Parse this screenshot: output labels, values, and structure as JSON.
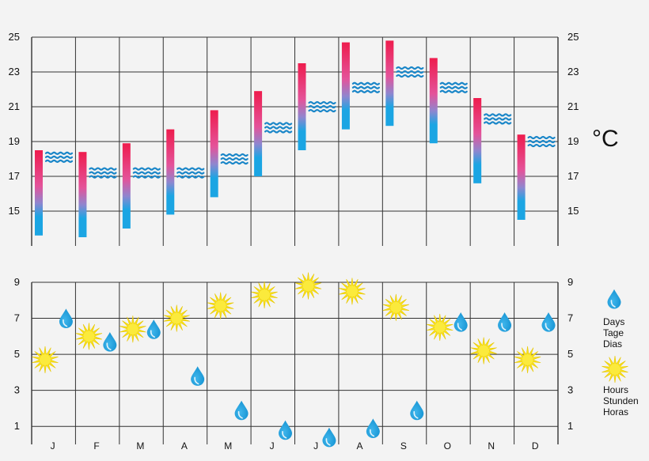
{
  "chart_data": [
    {
      "type": "bar",
      "title": "",
      "unit_label": "°C",
      "categories": [
        "J",
        "F",
        "M",
        "A",
        "M",
        "J",
        "J",
        "A",
        "S",
        "O",
        "N",
        "D"
      ],
      "ylim": [
        13,
        25
      ],
      "yticks": [
        15,
        17,
        19,
        21,
        23,
        25
      ],
      "grid": true,
      "series": [
        {
          "values_min": [
            13.6,
            13.5,
            14.0,
            14.8,
            15.8,
            17.0,
            18.5,
            19.7,
            19.9,
            18.9,
            16.6,
            14.5
          ],
          "values_max": [
            18.5,
            18.4,
            18.9,
            19.7,
            20.8,
            21.9,
            23.5,
            24.7,
            24.8,
            23.8,
            21.5,
            19.4
          ],
          "color_top": "#ee1c4d",
          "color_bottom": "#1ba5e3"
        },
        {
          "values": [
            18.1,
            17.2,
            17.2,
            17.2,
            18.0,
            19.8,
            21.0,
            22.1,
            23.0,
            22.1,
            20.3,
            19.0
          ],
          "color": "#1a86c8",
          "icon": "wave-icon"
        }
      ]
    },
    {
      "type": "scatter",
      "title": "",
      "categories": [
        "J",
        "F",
        "M",
        "A",
        "M",
        "J",
        "J",
        "A",
        "S",
        "O",
        "N",
        "D"
      ],
      "ylim": [
        0,
        9
      ],
      "yticks": [
        1,
        3,
        5,
        7,
        9
      ],
      "grid": true,
      "legend_position": "right",
      "series": [
        {
          "name": "Days\nTage\nDias",
          "icon": "raindrop-icon",
          "color": "#1ba5e3",
          "values": [
            7.0,
            5.7,
            6.4,
            3.8,
            1.9,
            0.8,
            0.4,
            0.9,
            1.9,
            6.8,
            6.8,
            6.8
          ]
        },
        {
          "name": "Hours\nStunden\nHoras",
          "icon": "sun-icon",
          "color": "#f9e21a",
          "values": [
            4.7,
            6.0,
            6.4,
            7.0,
            7.7,
            8.3,
            8.8,
            8.5,
            7.6,
            6.5,
            5.2,
            4.7
          ]
        }
      ],
      "legend": {
        "rain_lines": [
          "Days",
          "Tage",
          "Dias"
        ],
        "sun_lines": [
          "Hours",
          "Stunden",
          "Horas"
        ]
      }
    }
  ]
}
